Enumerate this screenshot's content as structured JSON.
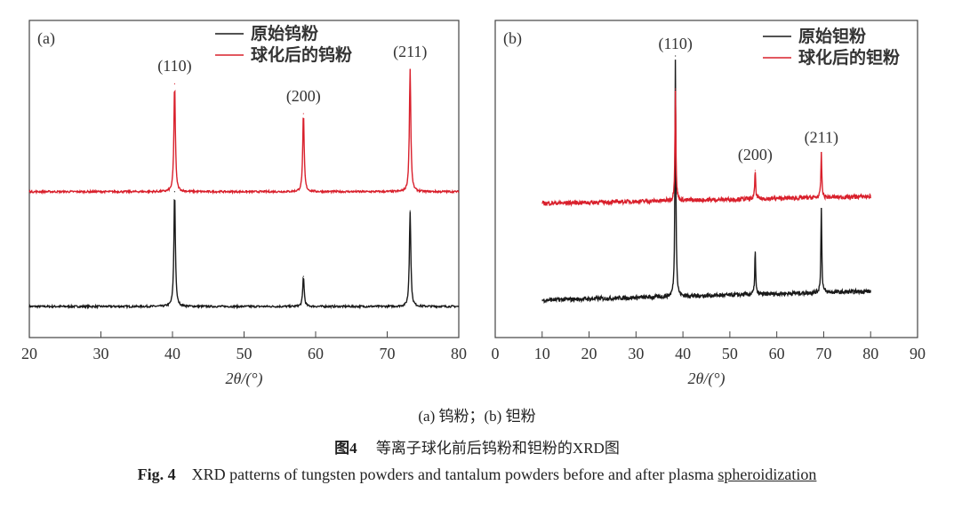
{
  "chart_data": [
    {
      "type": "line",
      "panel_label": "(a)",
      "xlabel": "2θ/(°)",
      "ylabel": "",
      "xlim": [
        20,
        80
      ],
      "ylim": [
        0,
        100
      ],
      "x_ticks": [
        "20",
        "30",
        "40",
        "50",
        "60",
        "70",
        "80"
      ],
      "x_tick_values": [
        20,
        30,
        40,
        50,
        60,
        70,
        80
      ],
      "x_data_range": [
        20,
        80
      ],
      "legend_position": "top-center",
      "peak_labels": [
        {
          "text": "(110)",
          "x": 40.3,
          "y": 84
        },
        {
          "text": "(200)",
          "x": 58.3,
          "y": 74.5
        },
        {
          "text": "(211)",
          "x": 73.2,
          "y": 88.5
        }
      ],
      "series": [
        {
          "name": "原始钨粉",
          "color": "#1a1a1a",
          "baseline": [
            9.8,
            9.8
          ],
          "peaks": [
            {
              "x": 40.3,
              "y": 46
            },
            {
              "x": 58.3,
              "y": 19.3
            },
            {
              "x": 73.2,
              "y": 40
            }
          ]
        },
        {
          "name": "球化后的钨粉",
          "color": "#d9202c",
          "baseline": [
            46,
            46
          ],
          "peaks": [
            {
              "x": 40.3,
              "y": 80
            },
            {
              "x": 58.3,
              "y": 70.6
            },
            {
              "x": 73.2,
              "y": 84.6
            }
          ]
        }
      ]
    },
    {
      "type": "line",
      "panel_label": "(b)",
      "xlabel": "2θ/(°)",
      "ylabel": "",
      "xlim": [
        0,
        90
      ],
      "ylim": [
        0,
        100
      ],
      "x_ticks": [
        "0",
        "10",
        "20",
        "30",
        "40",
        "50",
        "60",
        "70",
        "80",
        "90"
      ],
      "x_tick_values": [
        0,
        10,
        20,
        30,
        40,
        50,
        60,
        70,
        80,
        90
      ],
      "x_data_range": [
        10,
        80
      ],
      "legend_position": "top-right",
      "peak_labels": [
        {
          "text": "(110)",
          "x": 38.4,
          "y": 91
        },
        {
          "text": "(200)",
          "x": 55.4,
          "y": 56
        },
        {
          "text": "(211)",
          "x": 69.5,
          "y": 61.5
        }
      ],
      "series": [
        {
          "name": "原始钽粉",
          "color": "#1a1a1a",
          "baseline": [
            11.8,
            14.6
          ],
          "peaks": [
            {
              "x": 38.4,
              "y": 88.8
            },
            {
              "x": 55.4,
              "y": 27
            },
            {
              "x": 69.5,
              "y": 40.6
            }
          ]
        },
        {
          "name": "球化后的钽粉",
          "color": "#d9202c",
          "baseline": [
            42.3,
            44.5
          ],
          "peaks": [
            {
              "x": 38.4,
              "y": 78.4
            },
            {
              "x": 55.4,
              "y": 52.7
            },
            {
              "x": 69.5,
              "y": 58
            }
          ]
        }
      ]
    }
  ],
  "captions": {
    "sub": "(a) 钨粉；(b) 钽粉",
    "cn_label": "图4",
    "cn_text": "等离子球化前后钨粉和钽粉的XRD图",
    "en_label": "Fig. 4",
    "en_text": "XRD patterns of tungsten powders and tantalum powders before and after plasma ",
    "en_text_end": "spheroidization"
  }
}
